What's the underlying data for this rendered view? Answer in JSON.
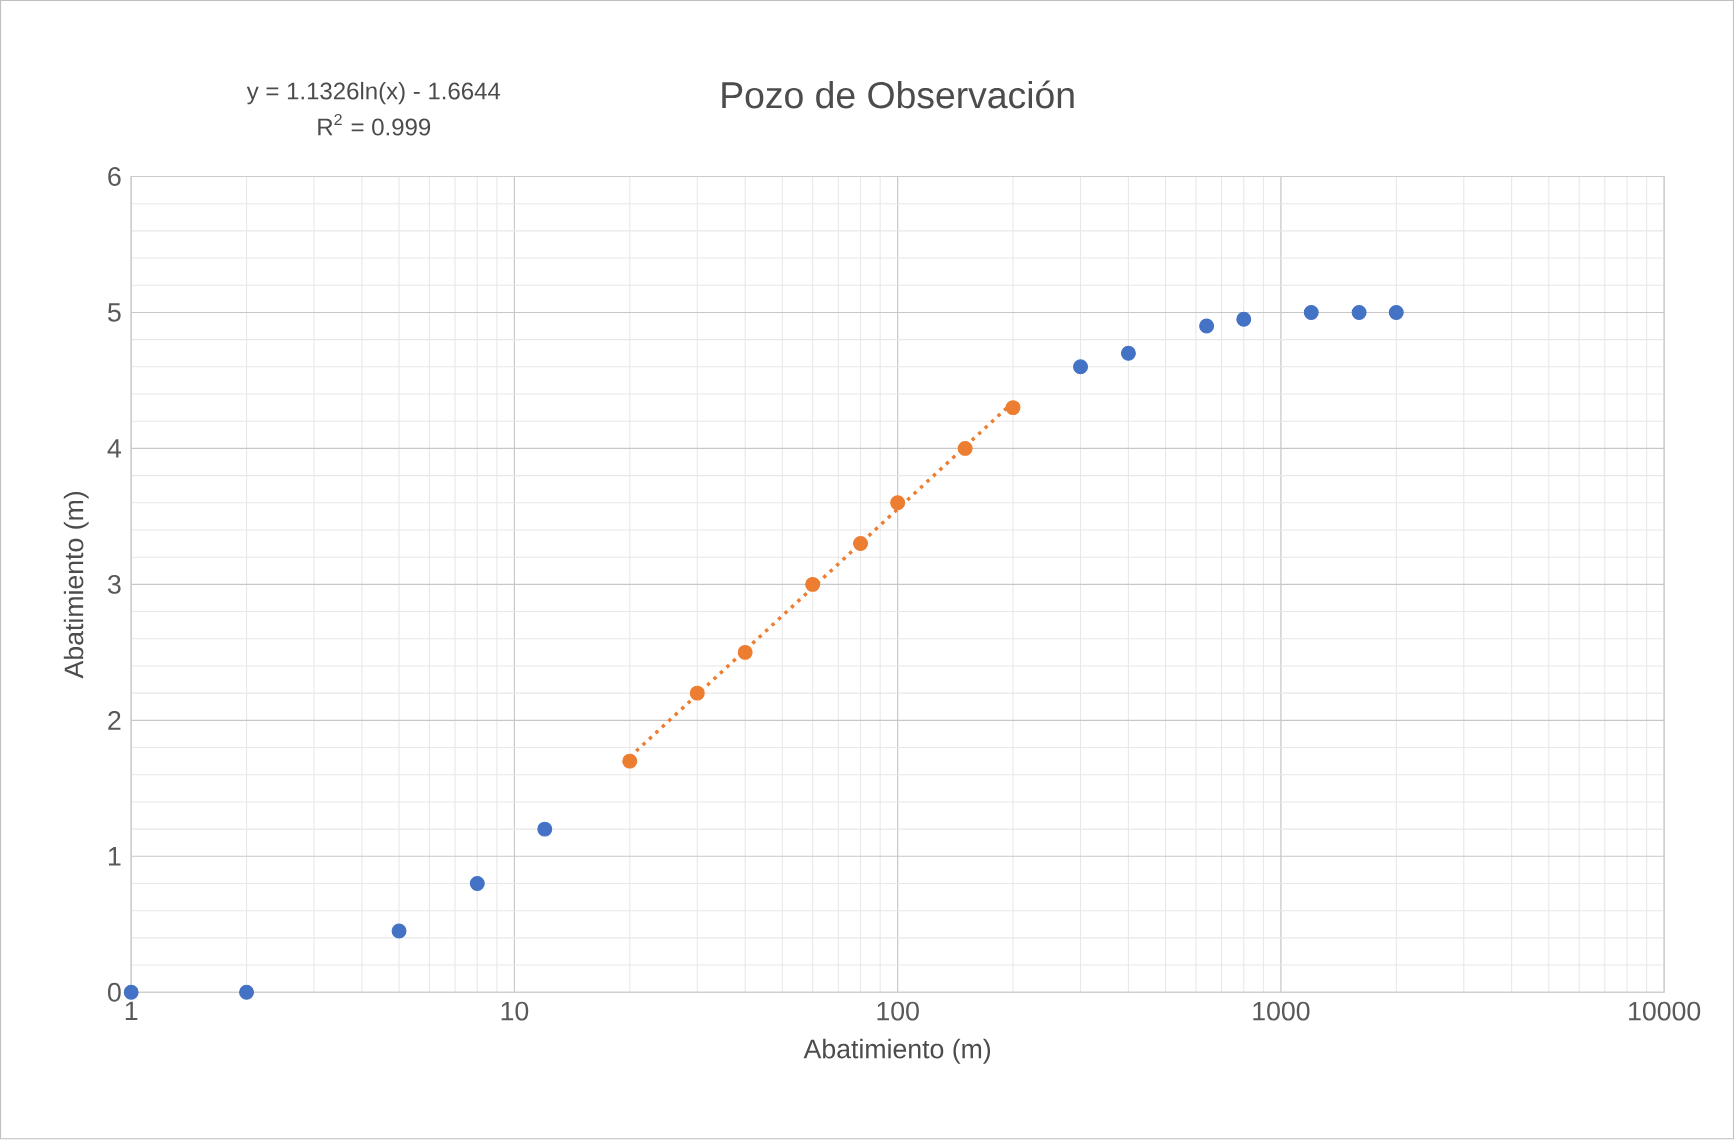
{
  "chart_data": {
    "type": "scatter",
    "title": "Pozo de Observación",
    "xlabel": "Abatimiento (m)",
    "ylabel": "Abatimiento (m)",
    "annotations": [
      "y = 1.1326ln(x) - 1.6644",
      "R$^{2}$ = 0.999"
    ],
    "log": "x",
    "grid": true,
    "marker": "circle",
    "xlim": [
      1,
      10000
    ],
    "xticks": [
      1,
      10,
      100,
      1000,
      10000
    ],
    "ylim": [
      0,
      6
    ],
    "yticks": [
      0,
      1,
      2,
      3,
      4,
      5,
      6
    ],
    "series": [
      {
        "color": "#4472c4",
        "x": [
          1,
          2,
          5,
          8,
          12,
          300,
          400,
          640,
          800,
          1200,
          1600,
          2000
        ],
        "values": [
          0,
          0,
          0.45,
          0.8,
          1.2,
          4.6,
          4.7,
          4.9,
          4.95,
          5.0,
          5.0,
          5.0
        ]
      },
      {
        "color": "#ed7d31",
        "x": [
          20,
          30,
          40,
          60,
          80,
          100,
          150,
          200
        ],
        "values": [
          1.7,
          2.2,
          2.5,
          3.0,
          3.3,
          3.6,
          4.0,
          4.3
        ]
      },
      {
        "type": "line",
        "color": "#ed7d31",
        "line_style": "dotted",
        "marker": "none",
        "x": [
          20,
          200
        ],
        "values": [
          1.73,
          4.34
        ]
      }
    ]
  }
}
